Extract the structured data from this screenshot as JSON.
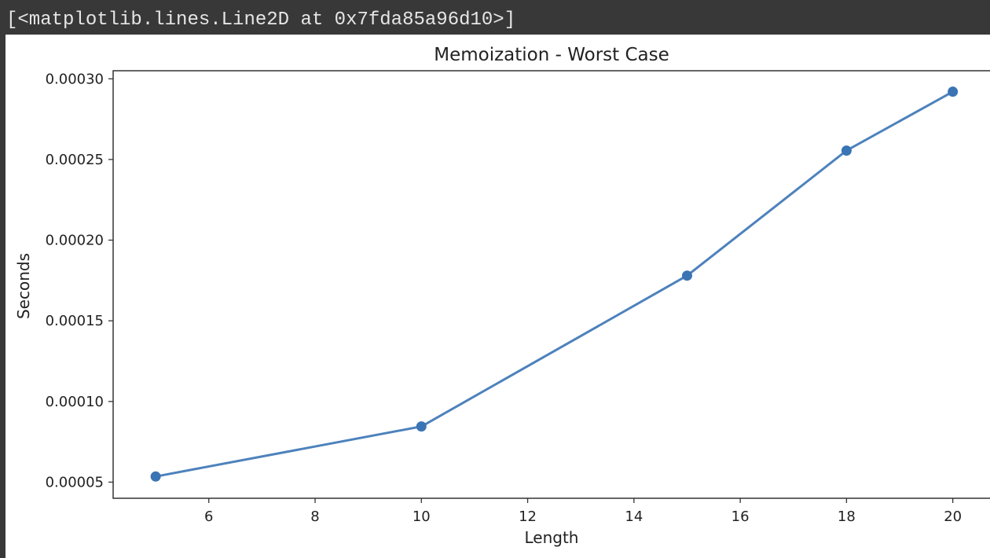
{
  "output": {
    "repr_text": "[<matplotlib.lines.Line2D at 0x7fda85a96d10>]"
  },
  "chart_data": {
    "type": "line",
    "title": "Memoization -  Worst Case",
    "xlabel": "Length",
    "ylabel": "Seconds",
    "xlim": [
      4.2,
      20.7
    ],
    "ylim": [
      4e-05,
      0.000305
    ],
    "xticks": [
      6,
      8,
      10,
      12,
      14,
      16,
      18,
      20
    ],
    "xtick_labels": [
      "6",
      "8",
      "10",
      "12",
      "14",
      "16",
      "18",
      "20"
    ],
    "yticks": [
      5e-05,
      0.0001,
      0.00015,
      0.0002,
      0.00025,
      0.0003
    ],
    "ytick_labels": [
      "0.00005",
      "0.00010",
      "0.00015",
      "0.00020",
      "0.00025",
      "0.00030"
    ],
    "grid": false,
    "series": [
      {
        "x": [
          5,
          10,
          15,
          18,
          20
        ],
        "y": [
          5.35e-05,
          8.45e-05,
          0.000178,
          0.0002555,
          0.000292
        ],
        "color": "#3a74b5",
        "marker": "circle"
      }
    ]
  }
}
